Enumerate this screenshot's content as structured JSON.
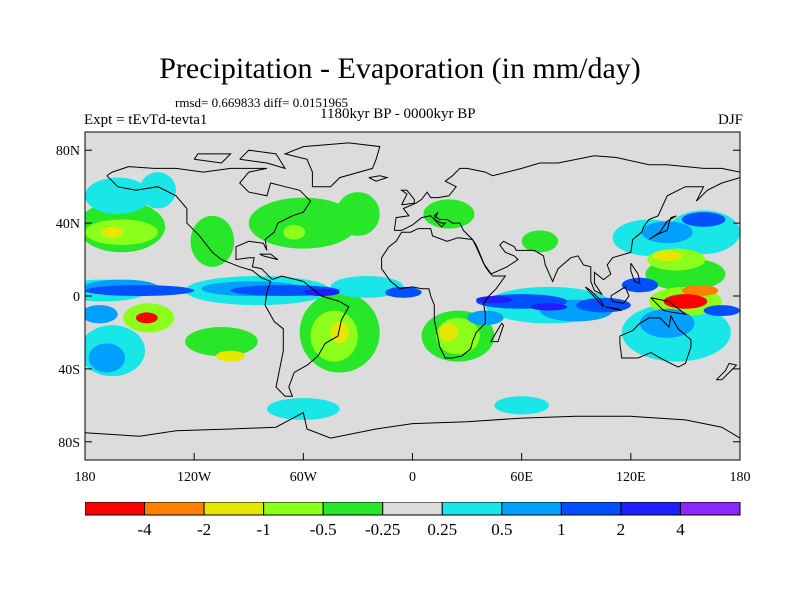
{
  "header": {
    "title": "Precipitation - Evaporation (in mm/day)",
    "stats": "rmsd= 0.669833 diff= 0.0151965",
    "experiment": "Expt = tEvTd-tevta1",
    "period": "1180kyr BP - 0000kyr BP",
    "season": "DJF"
  },
  "map": {
    "projection": "cylindrical-equidistant",
    "lon_range": [
      -180,
      180
    ],
    "lat_range": [
      -90,
      90
    ],
    "y_ticks": [
      {
        "lat": 80,
        "label": "80N"
      },
      {
        "lat": 40,
        "label": "40N"
      },
      {
        "lat": 0,
        "label": "0"
      },
      {
        "lat": -40,
        "label": "40S"
      },
      {
        "lat": -80,
        "label": "80S"
      }
    ],
    "x_ticks": [
      {
        "lon": -180,
        "label": "180"
      },
      {
        "lon": -120,
        "label": "120W"
      },
      {
        "lon": -60,
        "label": "60W"
      },
      {
        "lon": 0,
        "label": "0"
      },
      {
        "lon": 60,
        "label": "60E"
      },
      {
        "lon": 120,
        "label": "120E"
      },
      {
        "lon": 180,
        "label": "180"
      }
    ],
    "background_color": "#dcdcdc",
    "coastline_color": "#000000"
  },
  "colorbar": {
    "bins": [
      {
        "color": "#ff0000",
        "label": "-4"
      },
      {
        "color": "#ff8000",
        "label": "-2"
      },
      {
        "color": "#e6e600",
        "label": "-1"
      },
      {
        "color": "#8cff1a",
        "label": "-0.5"
      },
      {
        "color": "#28e628",
        "label": "-0.25"
      },
      {
        "color": "#dcdcdc",
        "label": "0.25"
      },
      {
        "color": "#19e6e6",
        "label": "0.5"
      },
      {
        "color": "#00a0ff",
        "label": "1"
      },
      {
        "color": "#0050ff",
        "label": "2"
      },
      {
        "color": "#1e1eff",
        "label": "4"
      },
      {
        "color": "#8c28ff",
        "label": ""
      }
    ]
  },
  "chart_data": {
    "type": "heatmap",
    "variable": "Precipitation - Evaporation",
    "units": "mm/day",
    "grid_on": false,
    "levels": [
      -4,
      -2,
      -1,
      -0.5,
      -0.25,
      0.25,
      0.5,
      1,
      2,
      4
    ],
    "regions": [
      {
        "lon": 150,
        "lat": -3,
        "rx": 12,
        "ry": 4,
        "value": -5
      },
      {
        "lon": 158,
        "lat": 3,
        "rx": 10,
        "ry": 3,
        "value": -3
      },
      {
        "lon": -146,
        "lat": -12,
        "rx": 6,
        "ry": 3,
        "value": -5
      },
      {
        "lon": -40,
        "lat": -20,
        "rx": 5,
        "ry": 6,
        "value": -1.5
      },
      {
        "lon": 20,
        "lat": -20,
        "rx": 5,
        "ry": 5,
        "value": -1.5
      },
      {
        "lon": -165,
        "lat": 35,
        "rx": 6,
        "ry": 3,
        "value": -1.5
      },
      {
        "lon": -100,
        "lat": -33,
        "rx": 8,
        "ry": 3,
        "value": -1.5
      },
      {
        "lon": 140,
        "lat": 22,
        "rx": 8,
        "ry": 3,
        "value": -1.5
      },
      {
        "lon": -160,
        "lat": 35,
        "rx": 20,
        "ry": 7,
        "value": -0.75
      },
      {
        "lon": -145,
        "lat": -12,
        "rx": 14,
        "ry": 8,
        "value": -0.75
      },
      {
        "lon": -43,
        "lat": -22,
        "rx": 13,
        "ry": 14,
        "value": -0.75
      },
      {
        "lon": 25,
        "lat": -22,
        "rx": 12,
        "ry": 10,
        "value": -0.75
      },
      {
        "lon": 150,
        "lat": -3,
        "rx": 20,
        "ry": 8,
        "value": -0.75
      },
      {
        "lon": 145,
        "lat": 20,
        "rx": 16,
        "ry": 6,
        "value": -0.75
      },
      {
        "lon": -65,
        "lat": 35,
        "rx": 6,
        "ry": 4,
        "value": -0.75
      },
      {
        "lon": -160,
        "lat": 38,
        "rx": 24,
        "ry": 14,
        "value": -0.35
      },
      {
        "lon": -110,
        "lat": 30,
        "rx": 12,
        "ry": 14,
        "value": -0.35
      },
      {
        "lon": -60,
        "lat": 40,
        "rx": 30,
        "ry": 14,
        "value": -0.35
      },
      {
        "lon": -30,
        "lat": 45,
        "rx": 12,
        "ry": 12,
        "value": -0.35
      },
      {
        "lon": 20,
        "lat": 45,
        "rx": 14,
        "ry": 8,
        "value": -0.35
      },
      {
        "lon": 70,
        "lat": 30,
        "rx": 10,
        "ry": 6,
        "value": -0.35
      },
      {
        "lon": -40,
        "lat": -20,
        "rx": 22,
        "ry": 22,
        "value": -0.35
      },
      {
        "lon": 25,
        "lat": -22,
        "rx": 20,
        "ry": 14,
        "value": -0.35
      },
      {
        "lon": -105,
        "lat": -25,
        "rx": 20,
        "ry": 8,
        "value": -0.35
      },
      {
        "lon": 150,
        "lat": 12,
        "rx": 22,
        "ry": 9,
        "value": -0.35
      },
      {
        "lon": -162,
        "lat": 55,
        "rx": 18,
        "ry": 10,
        "value": 0.35
      },
      {
        "lon": -140,
        "lat": 58,
        "rx": 10,
        "ry": 10,
        "value": 0.35
      },
      {
        "lon": 130,
        "lat": 32,
        "rx": 20,
        "ry": 10,
        "value": 0.35
      },
      {
        "lon": 160,
        "lat": 35,
        "rx": 20,
        "ry": 12,
        "value": 0.35
      },
      {
        "lon": -170,
        "lat": 3,
        "rx": 25,
        "ry": 6,
        "value": 0.35
      },
      {
        "lon": -85,
        "lat": 3,
        "rx": 40,
        "ry": 8,
        "value": 0.35
      },
      {
        "lon": -25,
        "lat": 5,
        "rx": 20,
        "ry": 6,
        "value": 0.35
      },
      {
        "lon": 75,
        "lat": -5,
        "rx": 35,
        "ry": 10,
        "value": 0.35
      },
      {
        "lon": 145,
        "lat": -20,
        "rx": 30,
        "ry": 16,
        "value": 0.35
      },
      {
        "lon": -165,
        "lat": -30,
        "rx": 18,
        "ry": 14,
        "value": 0.35
      },
      {
        "lon": -60,
        "lat": -62,
        "rx": 20,
        "ry": 6,
        "value": 0.35
      },
      {
        "lon": 60,
        "lat": -60,
        "rx": 15,
        "ry": 5,
        "value": 0.35
      },
      {
        "lon": -172,
        "lat": -10,
        "rx": 10,
        "ry": 5,
        "value": 0.75
      },
      {
        "lon": -160,
        "lat": 5,
        "rx": 20,
        "ry": 4,
        "value": 0.75
      },
      {
        "lon": -88,
        "lat": 4,
        "rx": 28,
        "ry": 4,
        "value": 0.75
      },
      {
        "lon": 90,
        "lat": -8,
        "rx": 20,
        "ry": 6,
        "value": 0.75
      },
      {
        "lon": 140,
        "lat": 35,
        "rx": 14,
        "ry": 6,
        "value": 0.75
      },
      {
        "lon": 140,
        "lat": -15,
        "rx": 15,
        "ry": 8,
        "value": 0.75
      },
      {
        "lon": -168,
        "lat": -34,
        "rx": 10,
        "ry": 8,
        "value": 0.75
      },
      {
        "lon": 40,
        "lat": -12,
        "rx": 10,
        "ry": 4,
        "value": 0.75
      },
      {
        "lon": -150,
        "lat": 3,
        "rx": 30,
        "ry": 3,
        "value": 1.5
      },
      {
        "lon": -70,
        "lat": 3,
        "rx": 30,
        "ry": 3,
        "value": 1.5
      },
      {
        "lon": -5,
        "lat": 2,
        "rx": 10,
        "ry": 3,
        "value": 1.5
      },
      {
        "lon": 60,
        "lat": -3,
        "rx": 25,
        "ry": 4,
        "value": 1.5
      },
      {
        "lon": 105,
        "lat": -5,
        "rx": 15,
        "ry": 4,
        "value": 1.5
      },
      {
        "lon": 125,
        "lat": 6,
        "rx": 10,
        "ry": 4,
        "value": 1.5
      },
      {
        "lon": 170,
        "lat": -8,
        "rx": 10,
        "ry": 3,
        "value": 1.5
      },
      {
        "lon": 160,
        "lat": 42,
        "rx": 12,
        "ry": 4,
        "value": 1.5
      },
      {
        "lon": -50,
        "lat": 2,
        "rx": 10,
        "ry": 2,
        "value": 3
      },
      {
        "lon": 45,
        "lat": -2,
        "rx": 10,
        "ry": 2,
        "value": 3
      },
      {
        "lon": 75,
        "lat": -6,
        "rx": 10,
        "ry": 2,
        "value": 3
      }
    ]
  }
}
